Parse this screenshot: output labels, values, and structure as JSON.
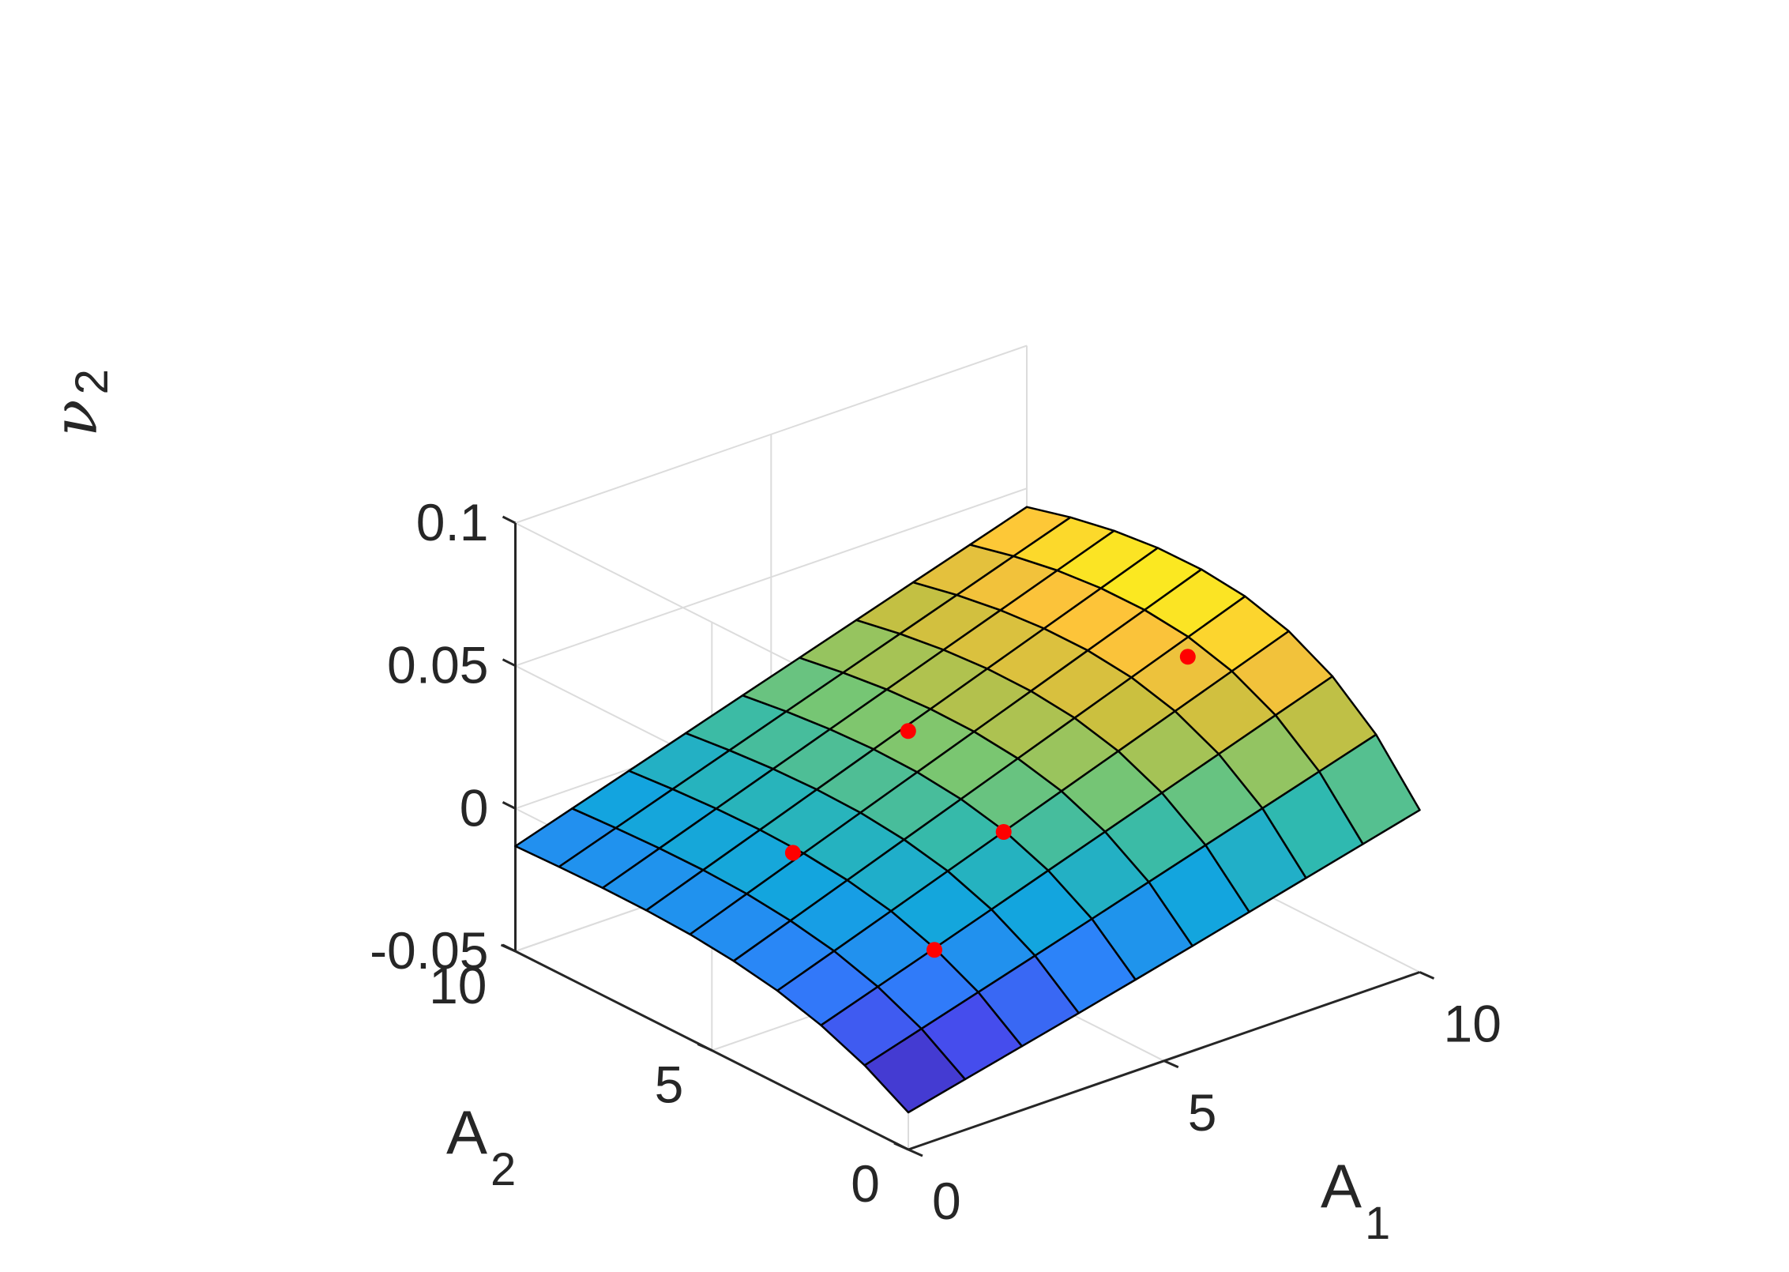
{
  "chart_data": {
    "type": "surface3d",
    "title": "",
    "x_axis": {
      "label": "A",
      "label_sub": "1",
      "range": [
        0,
        10
      ],
      "ticks": [
        0,
        5,
        10
      ],
      "tick_labels": [
        "0",
        "5",
        "10"
      ]
    },
    "y_axis": {
      "label": "A",
      "label_sub": "2",
      "range": [
        0,
        10
      ],
      "ticks": [
        0,
        5,
        10
      ],
      "tick_labels": [
        "0",
        "5",
        "10"
      ]
    },
    "z_axis": {
      "label": "ν",
      "label_sub": "2",
      "range": [
        -0.05,
        0.1
      ],
      "ticks": [
        -0.05,
        0,
        0.05,
        0.1
      ],
      "tick_labels": [
        "-0.05",
        "0",
        "0.05",
        "0.1"
      ]
    },
    "grid": true,
    "colormap": "parula",
    "surface": {
      "x": [
        0,
        1.111,
        2.222,
        3.333,
        4.444,
        5.556,
        6.667,
        7.778,
        8.889,
        10
      ],
      "y": [
        0,
        1.111,
        2.222,
        3.333,
        4.444,
        5.556,
        6.667,
        7.778,
        8.889,
        10
      ],
      "z": [
        [
          -0.037,
          -0.0323,
          -0.0276,
          -0.0229,
          -0.0181,
          -0.0132,
          -0.0082,
          -0.0032,
          0.0018,
          0.0068
        ],
        [
          -0.0282,
          -0.0223,
          -0.0164,
          -0.0105,
          -0.0045,
          0.0015,
          0.0075,
          0.0135,
          0.0195,
          0.0255
        ],
        [
          -0.0219,
          -0.0153,
          -0.0087,
          -0.002,
          0.0047,
          0.0114,
          0.0181,
          0.0248,
          0.0315,
          0.0382
        ],
        [
          -0.0175,
          -0.0105,
          -0.0034,
          0.0037,
          0.0108,
          0.0179,
          0.025,
          0.0321,
          0.0392,
          0.0463
        ],
        [
          -0.0148,
          -0.0076,
          -0.0003,
          0.007,
          0.0143,
          0.0216,
          0.0289,
          0.0362,
          0.0435,
          0.0508
        ],
        [
          -0.0132,
          -0.0059,
          0.0014,
          0.0087,
          0.016,
          0.0233,
          0.0306,
          0.0379,
          0.0452,
          0.0525
        ],
        [
          -0.0125,
          -0.0053,
          0.0019,
          0.0091,
          0.0163,
          0.0235,
          0.0307,
          0.0379,
          0.0451,
          0.0523
        ],
        [
          -0.0124,
          -0.0054,
          0.0016,
          0.0086,
          0.0156,
          0.0226,
          0.0296,
          0.0366,
          0.0436,
          0.0506
        ],
        [
          -0.0127,
          -0.006,
          0.0007,
          0.0074,
          0.0141,
          0.0208,
          0.0275,
          0.0342,
          0.0409,
          0.0476
        ],
        [
          -0.0132,
          -0.0069,
          -0.0006,
          0.0057,
          0.012,
          0.0183,
          0.0246,
          0.0309,
          0.0372,
          0.0435
        ]
      ]
    },
    "points": [
      {
        "x": 2.2,
        "y": 5.8,
        "z": 0.0
      },
      {
        "x": 4.4,
        "y": 3.3,
        "z": 0.011
      },
      {
        "x": 2.2,
        "y": 2.2,
        "z": -0.009
      },
      {
        "x": 4.3,
        "y": 5.6,
        "z": 0.031
      },
      {
        "x": 8.0,
        "y": 3.3,
        "z": 0.05
      }
    ],
    "colors": {
      "points": "#ff0000",
      "mesh_edges": "#000000",
      "grid": "#dcdcdc",
      "axis": "#262626"
    }
  }
}
